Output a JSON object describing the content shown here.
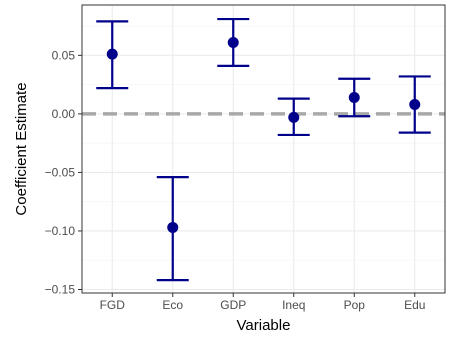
{
  "chart_data": {
    "type": "errorbar",
    "title": "",
    "xlabel": "Variable",
    "ylabel": "Coefficient Estimate",
    "categories": [
      "FGD",
      "Eco",
      "GDP",
      "Ineq",
      "Pop",
      "Edu"
    ],
    "estimates": [
      0.051,
      -0.097,
      0.061,
      -0.003,
      0.014,
      0.008
    ],
    "lower": [
      0.022,
      -0.142,
      0.041,
      -0.018,
      -0.002,
      -0.016
    ],
    "upper": [
      0.079,
      -0.054,
      0.081,
      0.013,
      0.03,
      0.032
    ],
    "ylim": [
      -0.153,
      0.093
    ],
    "yticks": [
      -0.15,
      -0.1,
      -0.05,
      0.0,
      0.05
    ],
    "ytick_labels": [
      "−0.15",
      "−0.10",
      "−0.05",
      "0.00",
      "0.05"
    ],
    "reference_line": 0,
    "grid": true,
    "colors": {
      "point": "#00008b",
      "errorbar": "#00008b",
      "reference_line": "#a9a9a9",
      "grid_major": "#ebebeb",
      "grid_minor": "#f5f5f5",
      "panel_border": "#333333"
    }
  }
}
